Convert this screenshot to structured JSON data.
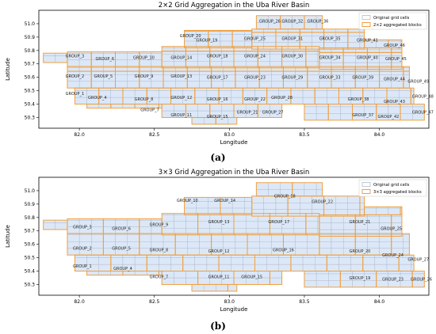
{
  "chart_data": [
    {
      "type": "other",
      "panel_label": "a",
      "title": "2×2 Grid Aggregation in the Uba River Basin",
      "xlabel": "Longitude",
      "ylabel": "Latitude",
      "xlim": [
        81.73,
        84.33
      ],
      "ylim": [
        50.22,
        51.1
      ],
      "xticks": [
        "82.0",
        "82.5",
        "83.0",
        "83.5",
        "84.0"
      ],
      "yticks": [
        "50.3",
        "50.4",
        "50.5",
        "50.6",
        "50.7",
        "50.8",
        "50.9",
        "51.0"
      ],
      "legend": {
        "position": "top-right",
        "entries": [
          "Original grid cells",
          "2×2 aggregated blocks"
        ]
      },
      "colors": {
        "cell_fill": "#dce8f7",
        "cell_edge": "#9aa6b8",
        "block_edge": "#f0a040"
      },
      "groups": [
        {
          "name": "GROUP_1",
          "lon": 81.97,
          "lat": 50.48
        },
        {
          "name": "GROUP_2",
          "lon": 81.97,
          "lat": 50.61
        },
        {
          "name": "GROUP_3",
          "lon": 81.97,
          "lat": 50.76
        },
        {
          "name": "GROUP_4",
          "lon": 82.12,
          "lat": 50.45
        },
        {
          "name": "GROUP_5",
          "lon": 82.16,
          "lat": 50.61
        },
        {
          "name": "GROUP_6",
          "lon": 82.17,
          "lat": 50.74
        },
        {
          "name": "GROUP_7",
          "lon": 82.47,
          "lat": 50.36
        },
        {
          "name": "GROUP_8",
          "lon": 82.43,
          "lat": 50.44
        },
        {
          "name": "GROUP_9",
          "lon": 82.43,
          "lat": 50.61
        },
        {
          "name": "GROUP_10",
          "lon": 82.43,
          "lat": 50.75
        },
        {
          "name": "GROUP_11",
          "lon": 82.68,
          "lat": 50.32
        },
        {
          "name": "GROUP_12",
          "lon": 82.68,
          "lat": 50.45
        },
        {
          "name": "GROUP_13",
          "lon": 82.68,
          "lat": 50.61
        },
        {
          "name": "GROUP_14",
          "lon": 82.68,
          "lat": 50.75
        },
        {
          "name": "GROUP_15",
          "lon": 82.92,
          "lat": 50.31
        },
        {
          "name": "GROUP_16",
          "lon": 82.92,
          "lat": 50.44
        },
        {
          "name": "GROUP_17",
          "lon": 82.92,
          "lat": 50.6
        },
        {
          "name": "GROUP_18",
          "lon": 82.92,
          "lat": 50.76
        },
        {
          "name": "GROUP_19",
          "lon": 82.85,
          "lat": 50.88
        },
        {
          "name": "GROUP_20",
          "lon": 82.74,
          "lat": 50.91
        },
        {
          "name": "GROUP_21",
          "lon": 83.12,
          "lat": 50.34
        },
        {
          "name": "GROUP_22",
          "lon": 83.17,
          "lat": 50.44
        },
        {
          "name": "GROUP_23",
          "lon": 83.17,
          "lat": 50.6
        },
        {
          "name": "GROUP_24",
          "lon": 83.17,
          "lat": 50.76
        },
        {
          "name": "GROUP_25",
          "lon": 83.17,
          "lat": 50.89
        },
        {
          "name": "GROUP_26",
          "lon": 83.27,
          "lat": 51.02
        },
        {
          "name": "GROUP_27",
          "lon": 83.29,
          "lat": 50.34
        },
        {
          "name": "GROUP_28",
          "lon": 83.35,
          "lat": 50.45
        },
        {
          "name": "GROUP_29",
          "lon": 83.42,
          "lat": 50.6
        },
        {
          "name": "GROUP_30",
          "lon": 83.42,
          "lat": 50.76
        },
        {
          "name": "GROUP_31",
          "lon": 83.42,
          "lat": 50.89
        },
        {
          "name": "GROUP_32",
          "lon": 83.42,
          "lat": 51.02
        },
        {
          "name": "GROUP_33",
          "lon": 83.67,
          "lat": 50.6
        },
        {
          "name": "GROUP_34",
          "lon": 83.67,
          "lat": 50.75
        },
        {
          "name": "GROUP_35",
          "lon": 83.67,
          "lat": 50.89
        },
        {
          "name": "GROUP_36",
          "lon": 83.59,
          "lat": 51.02
        },
        {
          "name": "GROUP_37",
          "lon": 83.89,
          "lat": 50.32
        },
        {
          "name": "GROUP_38",
          "lon": 83.86,
          "lat": 50.44
        },
        {
          "name": "GROUP_39",
          "lon": 83.89,
          "lat": 50.6
        },
        {
          "name": "GROUP_40",
          "lon": 83.92,
          "lat": 50.75
        },
        {
          "name": "GROUP_41",
          "lon": 83.92,
          "lat": 50.88
        },
        {
          "name": "GROUP_42",
          "lon": 84.06,
          "lat": 50.31
        },
        {
          "name": "GROUP_43",
          "lon": 84.1,
          "lat": 50.42
        },
        {
          "name": "GROUP_44",
          "lon": 84.1,
          "lat": 50.59
        },
        {
          "name": "GROUP_45",
          "lon": 84.11,
          "lat": 50.74
        },
        {
          "name": "GROUP_46",
          "lon": 84.1,
          "lat": 50.84
        },
        {
          "name": "GROUP_47",
          "lon": 84.29,
          "lat": 50.34
        },
        {
          "name": "GROUP_48",
          "lon": 84.29,
          "lat": 50.46
        },
        {
          "name": "GROUP_49",
          "lon": 84.26,
          "lat": 50.57
        }
      ]
    },
    {
      "type": "other",
      "panel_label": "b",
      "title": "3×3 Grid Aggregation in the Uba River Basin",
      "xlabel": "Longitude",
      "ylabel": "Latitude",
      "xlim": [
        81.73,
        84.33
      ],
      "ylim": [
        50.22,
        51.1
      ],
      "xticks": [
        "82.0",
        "82.5",
        "83.0",
        "83.5",
        "84.0"
      ],
      "yticks": [
        "50.3",
        "50.4",
        "50.5",
        "50.6",
        "50.7",
        "50.8",
        "50.9",
        "51.0"
      ],
      "legend": {
        "position": "top-right",
        "entries": [
          "Original grid cells",
          "3×3 aggregated blocks"
        ]
      },
      "colors": {
        "cell_fill": "#dce8f7",
        "cell_edge": "#9aa6b8",
        "block_edge": "#f0a040"
      },
      "groups": [
        {
          "name": "GROUP_1",
          "lon": 82.02,
          "lat": 50.44
        },
        {
          "name": "GROUP_2",
          "lon": 82.02,
          "lat": 50.57
        },
        {
          "name": "GROUP_3",
          "lon": 82.02,
          "lat": 50.73
        },
        {
          "name": "GROUP_4",
          "lon": 82.29,
          "lat": 50.42
        },
        {
          "name": "GROUP_5",
          "lon": 82.28,
          "lat": 50.57
        },
        {
          "name": "GROUP_6",
          "lon": 82.28,
          "lat": 50.72
        },
        {
          "name": "GROUP_7",
          "lon": 82.53,
          "lat": 50.36
        },
        {
          "name": "GROUP_8",
          "lon": 82.53,
          "lat": 50.56
        },
        {
          "name": "GROUP_9",
          "lon": 82.53,
          "lat": 50.75
        },
        {
          "name": "GROUP_10",
          "lon": 82.72,
          "lat": 50.93
        },
        {
          "name": "GROUP_11",
          "lon": 82.93,
          "lat": 50.36
        },
        {
          "name": "GROUP_12",
          "lon": 82.93,
          "lat": 50.55
        },
        {
          "name": "GROUP_13",
          "lon": 82.93,
          "lat": 50.77
        },
        {
          "name": "GROUP_14",
          "lon": 82.97,
          "lat": 50.93
        },
        {
          "name": "GROUP_15",
          "lon": 83.15,
          "lat": 50.36
        },
        {
          "name": "GROUP_16",
          "lon": 83.36,
          "lat": 50.56
        },
        {
          "name": "GROUP_17",
          "lon": 83.33,
          "lat": 50.77
        },
        {
          "name": "GROUP_18",
          "lon": 83.37,
          "lat": 50.96
        },
        {
          "name": "GROUP_19",
          "lon": 83.87,
          "lat": 50.35
        },
        {
          "name": "GROUP_20",
          "lon": 83.87,
          "lat": 50.55
        },
        {
          "name": "GROUP_21",
          "lon": 83.87,
          "lat": 50.77
        },
        {
          "name": "GROUP_22",
          "lon": 83.62,
          "lat": 50.92
        },
        {
          "name": "GROUP_23",
          "lon": 84.09,
          "lat": 50.34
        },
        {
          "name": "GROUP_24",
          "lon": 84.09,
          "lat": 50.52
        },
        {
          "name": "GROUP_25",
          "lon": 84.08,
          "lat": 50.72
        },
        {
          "name": "GROUP_26",
          "lon": 84.28,
          "lat": 50.34
        },
        {
          "name": "GROUP_27",
          "lon": 84.26,
          "lat": 50.49
        }
      ]
    }
  ],
  "captions": {
    "a": "(a)",
    "b": "(b)"
  }
}
